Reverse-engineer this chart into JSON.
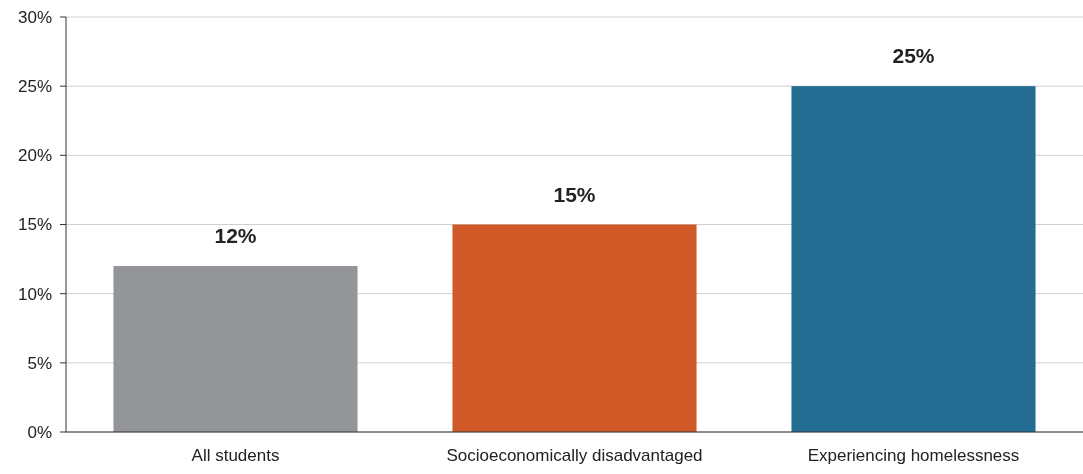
{
  "chart_data": {
    "type": "bar",
    "categories": [
      "All students",
      "Socioeconomically disadvantaged",
      "Experiencing homelessness"
    ],
    "values": [
      12,
      15,
      25
    ],
    "colors": [
      "#939598",
      "#d05a27",
      "#236d93"
    ],
    "value_labels": [
      "12%",
      "15%",
      "25%"
    ],
    "ylim": [
      0,
      30
    ],
    "yticks": [
      {
        "value": 0,
        "label": "0%"
      },
      {
        "value": 5,
        "label": "5%"
      },
      {
        "value": 10,
        "label": "10%"
      },
      {
        "value": 15,
        "label": "15%"
      },
      {
        "value": 20,
        "label": "20%"
      },
      {
        "value": 25,
        "label": "25%"
      },
      {
        "value": 30,
        "label": "30%"
      }
    ],
    "grid": "y"
  }
}
